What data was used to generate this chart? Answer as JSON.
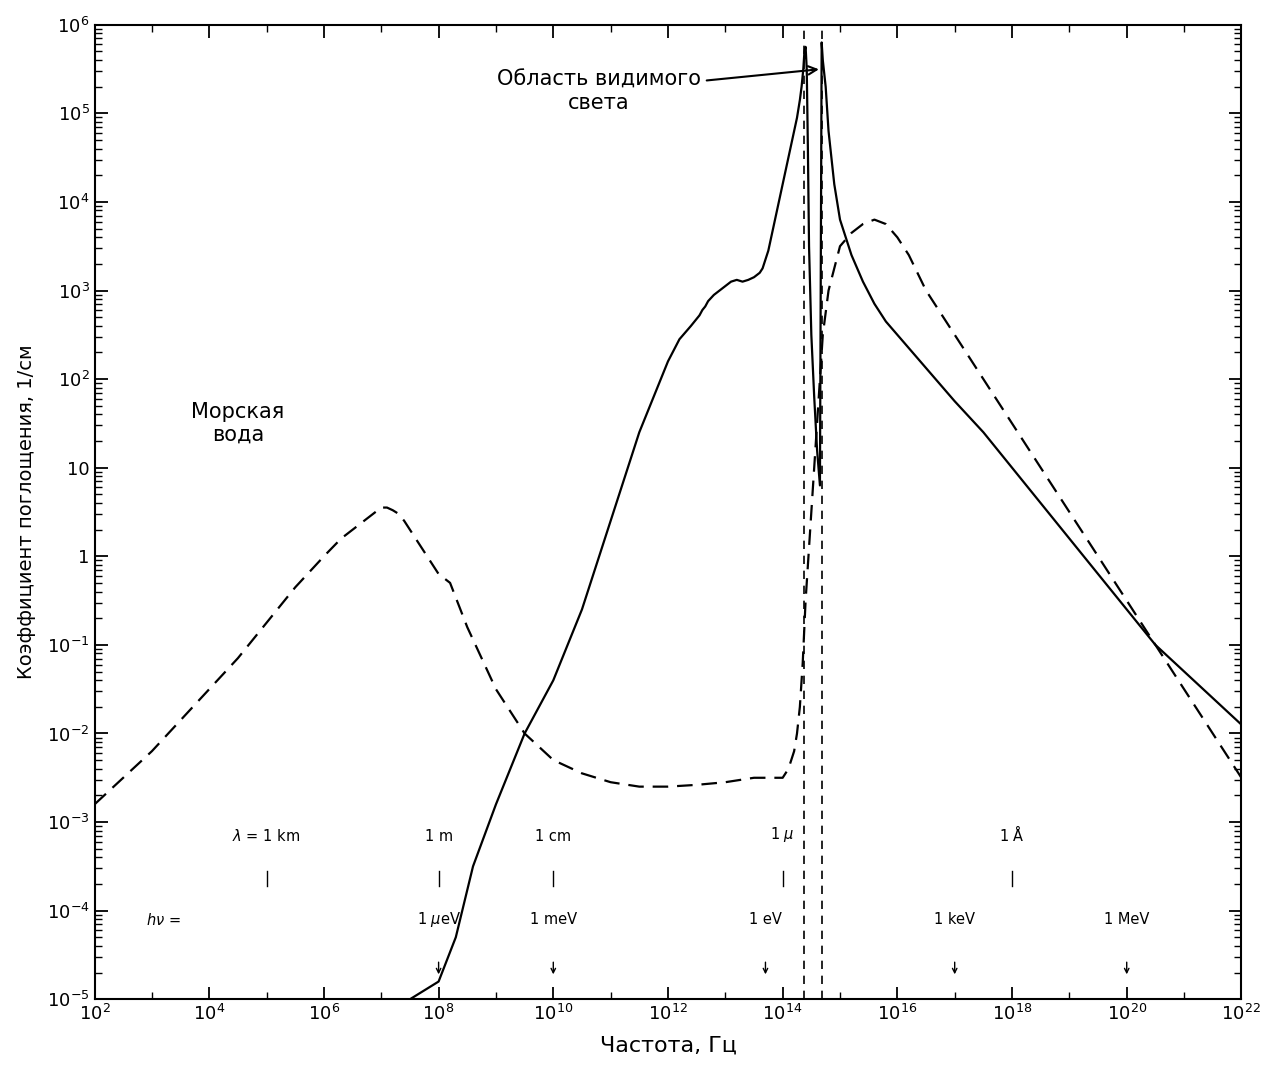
{
  "xlabel": "Частота, Гц",
  "ylabel": "Коэффициент поглощения, 1/см",
  "xmin": 2,
  "xmax": 22,
  "ymin": -5,
  "ymax": 6,
  "annotation_visible_light": "Область видимого\nсвета",
  "annotation_sea_water": "Морская\nвода",
  "visible_light_x1": 14.38,
  "visible_light_x2": 14.68,
  "background_color": "#ffffff",
  "solid_x": [
    2,
    3,
    4,
    5,
    6,
    7,
    7.5,
    8.0,
    8.3,
    8.6,
    9.0,
    9.5,
    10.0,
    10.5,
    11.0,
    11.5,
    12.0,
    12.2,
    12.4,
    12.5,
    12.55,
    12.6,
    12.65,
    12.7,
    12.8,
    12.9,
    13.0,
    13.1,
    13.2,
    13.3,
    13.4,
    13.5,
    13.6,
    13.65,
    13.7,
    13.75,
    13.8,
    13.85,
    13.9,
    13.95,
    14.0,
    14.05,
    14.1,
    14.15,
    14.2,
    14.25,
    14.3,
    14.33,
    14.36,
    14.38,
    14.4,
    14.42,
    14.44,
    14.46,
    14.5,
    14.55,
    14.6,
    14.65,
    14.68,
    14.7,
    14.75,
    14.8,
    14.9,
    15.0,
    15.1,
    15.2,
    15.4,
    15.6,
    15.8,
    16.0,
    16.2,
    16.4,
    16.6,
    16.8,
    17.0,
    17.5,
    18.0,
    18.5,
    19.0,
    19.5,
    20.0,
    20.5,
    21.0,
    21.5,
    22.0
  ],
  "solid_y": [
    -5.0,
    -5.0,
    -5.0,
    -5.0,
    -5.0,
    -5.0,
    -5.0,
    -4.8,
    -4.3,
    -3.5,
    -2.8,
    -2.0,
    -1.4,
    -0.6,
    0.4,
    1.4,
    2.2,
    2.45,
    2.6,
    2.68,
    2.72,
    2.78,
    2.82,
    2.88,
    2.95,
    3.0,
    3.05,
    3.1,
    3.12,
    3.1,
    3.12,
    3.15,
    3.2,
    3.25,
    3.35,
    3.45,
    3.6,
    3.75,
    3.9,
    4.05,
    4.2,
    4.35,
    4.5,
    4.65,
    4.8,
    4.95,
    5.15,
    5.3,
    5.5,
    5.7,
    5.75,
    5.5,
    4.6,
    3.5,
    2.5,
    1.8,
    1.2,
    0.8,
    5.8,
    5.6,
    5.3,
    4.8,
    4.2,
    3.8,
    3.6,
    3.4,
    3.1,
    2.85,
    2.65,
    2.5,
    2.35,
    2.2,
    2.05,
    1.9,
    1.75,
    1.4,
    1.0,
    0.6,
    0.2,
    -0.2,
    -0.6,
    -1.0,
    -1.3,
    -1.6,
    -1.9
  ],
  "dashed_x": [
    2,
    2.5,
    3,
    3.5,
    4,
    4.5,
    5,
    5.5,
    6,
    6.3,
    6.5,
    6.7,
    6.9,
    7.0,
    7.1,
    7.2,
    7.3,
    7.4,
    7.5,
    7.6,
    7.7,
    7.8,
    7.9,
    8.0,
    8.1,
    8.2,
    8.5,
    9.0,
    9.5,
    10.0,
    10.5,
    11.0,
    11.5,
    12.0,
    12.5,
    13.0,
    13.5,
    14.0,
    14.1,
    14.2,
    14.25,
    14.3,
    14.35,
    14.4,
    14.5,
    14.6,
    14.7,
    14.8,
    15.0,
    15.2,
    15.4,
    15.6,
    15.8,
    16.0,
    16.2,
    16.5,
    17.0,
    17.5,
    18.0,
    18.5,
    19.0,
    20.0,
    21.0,
    22.0
  ],
  "dashed_y": [
    -2.8,
    -2.5,
    -2.2,
    -1.85,
    -1.5,
    -1.15,
    -0.75,
    -0.35,
    0.0,
    0.2,
    0.3,
    0.4,
    0.5,
    0.55,
    0.55,
    0.52,
    0.48,
    0.4,
    0.3,
    0.2,
    0.1,
    0.0,
    -0.1,
    -0.2,
    -0.25,
    -0.3,
    -0.8,
    -1.5,
    -2.0,
    -2.3,
    -2.45,
    -2.55,
    -2.6,
    -2.6,
    -2.58,
    -2.55,
    -2.5,
    -2.5,
    -2.4,
    -2.2,
    -2.0,
    -1.7,
    -1.2,
    -0.5,
    0.5,
    1.5,
    2.5,
    3.0,
    3.5,
    3.65,
    3.75,
    3.8,
    3.75,
    3.6,
    3.4,
    3.0,
    2.5,
    2.0,
    1.5,
    1.0,
    0.5,
    -0.5,
    -1.5,
    -2.5
  ]
}
